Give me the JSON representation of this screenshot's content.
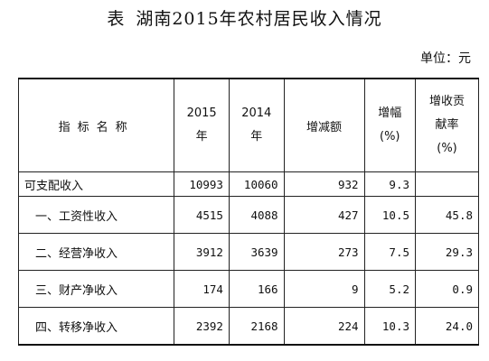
{
  "title": {
    "lead": "表",
    "main": "湖南2015年农村居民收入情况"
  },
  "unit": "单位：元",
  "header": {
    "name": "指标名称",
    "y2015_line1": "2015",
    "y2015_line2": "年",
    "y2014_line1": "2014",
    "y2014_line2": "年",
    "increase": "增减额",
    "rate_line1": "增幅",
    "rate_line2": "(%)",
    "contrib_line1": "增收贡",
    "contrib_line2": "献率",
    "contrib_line3": "(%)"
  },
  "rows": [
    {
      "name": "可支配收入",
      "y2015": "10993",
      "y2014": "10060",
      "increase": "932",
      "rate": "9.3",
      "contrib": ""
    },
    {
      "name": "一、工资性收入",
      "y2015": "4515",
      "y2014": "4088",
      "increase": "427",
      "rate": "10.5",
      "contrib": "45.8"
    },
    {
      "name": "二、经营净收入",
      "y2015": "3912",
      "y2014": "3639",
      "increase": "273",
      "rate": "7.5",
      "contrib": "29.3"
    },
    {
      "name": "三、财产净收入",
      "y2015": "174",
      "y2014": "166",
      "increase": "9",
      "rate": "5.2",
      "contrib": "0.9"
    },
    {
      "name": "四、转移净收入",
      "y2015": "2392",
      "y2014": "2168",
      "increase": "224",
      "rate": "10.3",
      "contrib": "24.0"
    }
  ]
}
